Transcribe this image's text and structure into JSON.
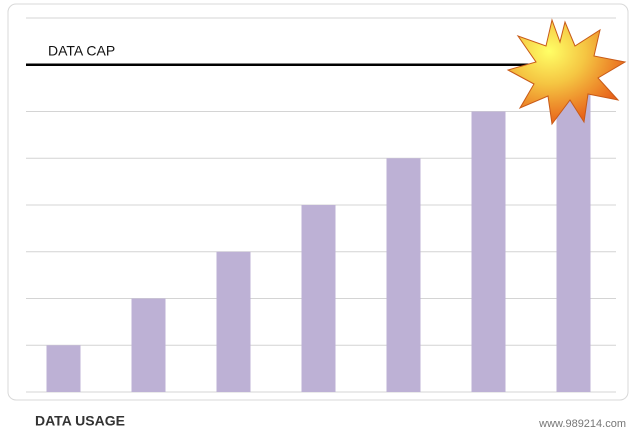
{
  "chart_data": {
    "type": "bar",
    "categories": [
      null,
      null,
      null,
      null,
      null,
      null,
      null
    ],
    "values": [
      1,
      2,
      3,
      4,
      5,
      6,
      7
    ],
    "color": "#bdb1d5",
    "ylim": [
      0,
      8
    ],
    "yticks": [
      0,
      1,
      2,
      3,
      4,
      5,
      6,
      7,
      8
    ],
    "show_tick_labels": false,
    "grid": true,
    "cap": {
      "label": "DATA CAP",
      "value": 7
    },
    "xlabel": "DATA USAGE",
    "watermark": "www.989214.com"
  }
}
